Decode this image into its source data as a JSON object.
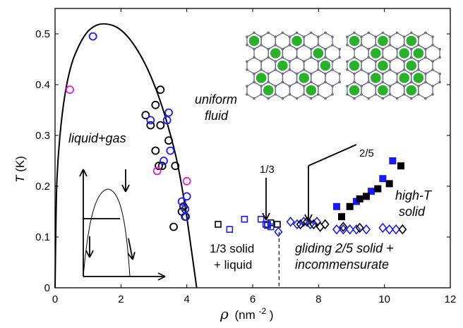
{
  "chart_data": {
    "type": "scatter",
    "xlabel_symbol": "ρ",
    "xlabel_unit": "(nm",
    "xlabel_exp": "-2",
    "ylabel_symbol": "T",
    "ylabel_unit": " (K)",
    "xlim": [
      0,
      12
    ],
    "ylim": [
      0,
      0.55
    ],
    "xticks": [
      0,
      2,
      4,
      6,
      8,
      10,
      12
    ],
    "yticks": [
      0,
      0.1,
      0.2,
      0.3,
      0.4,
      0.5
    ],
    "xtick_labels": [
      "0",
      "2",
      "4",
      "6",
      "8",
      "10",
      "12"
    ],
    "ytick_labels": [
      "0",
      "0.1",
      "0.2",
      "0.3",
      "0.4",
      "0.5"
    ],
    "colors": {
      "black": "#000000",
      "blue": "#1a1aff",
      "magenta": "#e020e0",
      "lattice": "#6e6e82",
      "adsorbate": "#2bb02b"
    },
    "coexistence_curve": [
      [
        0.0,
        0.0
      ],
      [
        0.05,
        0.2
      ],
      [
        0.15,
        0.3
      ],
      [
        0.3,
        0.38
      ],
      [
        0.5,
        0.44
      ],
      [
        0.75,
        0.48
      ],
      [
        1.0,
        0.505
      ],
      [
        1.3,
        0.518
      ],
      [
        1.6,
        0.519
      ],
      [
        1.9,
        0.512
      ],
      [
        2.2,
        0.495
      ],
      [
        2.5,
        0.468
      ],
      [
        2.8,
        0.432
      ],
      [
        3.1,
        0.385
      ],
      [
        3.4,
        0.325
      ],
      [
        3.7,
        0.25
      ],
      [
        3.95,
        0.16
      ],
      [
        4.15,
        0.07
      ],
      [
        4.3,
        0.0
      ]
    ],
    "series": [
      {
        "marker": "circle-open",
        "color": "black",
        "points": [
          [
            2.75,
            0.34
          ],
          [
            2.9,
            0.32
          ],
          [
            3.05,
            0.36
          ],
          [
            3.2,
            0.39
          ],
          [
            3.15,
            0.24
          ],
          [
            3.25,
            0.24
          ],
          [
            3.45,
            0.29
          ],
          [
            3.65,
            0.24
          ],
          [
            3.6,
            0.12
          ],
          [
            3.85,
            0.15
          ],
          [
            3.95,
            0.14
          ],
          [
            3.9,
            0.16
          ],
          [
            3.2,
            0.32
          ],
          [
            3.05,
            0.27
          ]
        ]
      },
      {
        "marker": "circle-open",
        "color": "blue",
        "points": [
          [
            1.15,
            0.495
          ],
          [
            2.9,
            0.33
          ],
          [
            3.3,
            0.25
          ],
          [
            3.4,
            0.33
          ],
          [
            3.45,
            0.345
          ],
          [
            3.5,
            0.27
          ],
          [
            3.85,
            0.17
          ],
          [
            3.95,
            0.155
          ],
          [
            4.0,
            0.18
          ],
          [
            3.97,
            0.14
          ]
        ]
      },
      {
        "marker": "circle-open",
        "color": "magenta",
        "points": [
          [
            0.45,
            0.39
          ],
          [
            3.1,
            0.23
          ],
          [
            4.0,
            0.21
          ]
        ]
      },
      {
        "marker": "square-open",
        "color": "black",
        "points": [
          [
            4.95,
            0.125
          ],
          [
            6.45,
            0.123
          ],
          [
            6.75,
            0.125
          ],
          [
            6.55,
            0.128
          ]
        ]
      },
      {
        "marker": "square-open",
        "color": "blue",
        "points": [
          [
            5.3,
            0.115
          ],
          [
            5.75,
            0.135
          ],
          [
            6.25,
            0.135
          ],
          [
            6.4,
            0.125
          ],
          [
            6.55,
            0.12
          ],
          [
            6.45,
            0.125
          ]
        ]
      },
      {
        "marker": "diamond-open",
        "color": "blue",
        "points": [
          [
            6.78,
            0.11
          ],
          [
            7.15,
            0.13
          ],
          [
            7.35,
            0.125
          ],
          [
            7.55,
            0.13
          ],
          [
            7.75,
            0.125
          ],
          [
            7.95,
            0.13
          ],
          [
            8.55,
            0.115
          ],
          [
            8.75,
            0.115
          ],
          [
            8.95,
            0.115
          ],
          [
            9.15,
            0.115
          ],
          [
            9.45,
            0.115
          ],
          [
            9.95,
            0.118
          ],
          [
            10.15,
            0.115
          ],
          [
            10.35,
            0.115
          ]
        ]
      },
      {
        "marker": "diamond-open",
        "color": "black",
        "points": [
          [
            7.45,
            0.125
          ],
          [
            7.65,
            0.13
          ],
          [
            7.85,
            0.125
          ],
          [
            8.05,
            0.12
          ],
          [
            8.2,
            0.125
          ],
          [
            8.75,
            0.12
          ],
          [
            9.25,
            0.118
          ],
          [
            10.55,
            0.115
          ]
        ]
      },
      {
        "marker": "square-filled",
        "color": "blue",
        "points": [
          [
            8.55,
            0.16
          ],
          [
            9.15,
            0.17
          ],
          [
            9.6,
            0.19
          ],
          [
            9.95,
            0.215
          ],
          [
            10.25,
            0.25
          ]
        ]
      },
      {
        "marker": "square-filled",
        "color": "black",
        "points": [
          [
            8.7,
            0.14
          ],
          [
            8.95,
            0.16
          ],
          [
            9.25,
            0.175
          ],
          [
            9.45,
            0.18
          ],
          [
            9.8,
            0.195
          ],
          [
            10.15,
            0.205
          ],
          [
            10.5,
            0.24
          ]
        ]
      }
    ],
    "annotations": {
      "uniform_fluid_1": "uniform",
      "uniform_fluid_2": "fluid",
      "liquid_gas": "liquid+gas",
      "high_t_1": "high-T",
      "high_t_2": "solid",
      "solid13_1": "1/3 solid",
      "solid13_2": "+ liquid",
      "gliding_1": "gliding 2/5 solid +",
      "gliding_2": "incommensurate",
      "arrow_13": "1/3",
      "arrow_25": "2/5"
    },
    "dashed_boundary_x": 6.8,
    "lattice_panels": {
      "panel_1_adsorbed_sites": [
        [
          0,
          0
        ],
        [
          0,
          3
        ],
        [
          1,
          1
        ],
        [
          1,
          4
        ],
        [
          2,
          2
        ],
        [
          3,
          0
        ],
        [
          3,
          3
        ],
        [
          4,
          1
        ],
        [
          4,
          4
        ],
        [
          2,
          5
        ]
      ],
      "panel_2_adsorbed_sites": [
        [
          0,
          0
        ],
        [
          0,
          2
        ],
        [
          1,
          1
        ],
        [
          1,
          3
        ],
        [
          2,
          0
        ],
        [
          2,
          2
        ],
        [
          3,
          1
        ],
        [
          3,
          3
        ],
        [
          4,
          0
        ],
        [
          4,
          2
        ],
        [
          1,
          4
        ],
        [
          3,
          4
        ],
        [
          0,
          4
        ],
        [
          2,
          4
        ],
        [
          4,
          4
        ]
      ]
    }
  }
}
